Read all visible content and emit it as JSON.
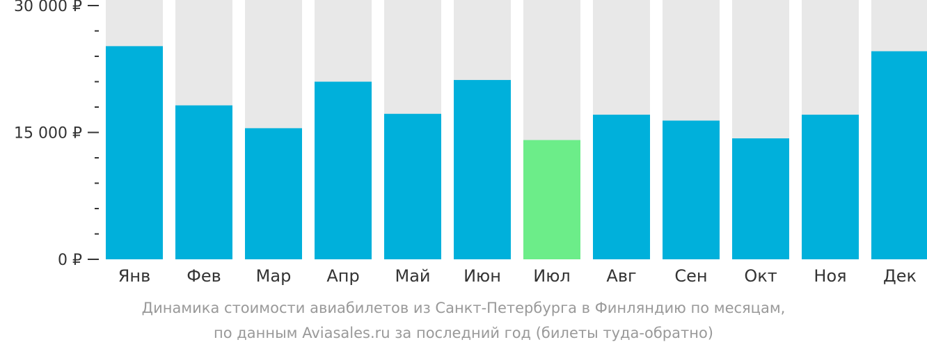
{
  "chart_data": {
    "type": "bar",
    "categories": [
      "Янв",
      "Фев",
      "Мар",
      "Апр",
      "Май",
      "Июн",
      "Июл",
      "Авг",
      "Сен",
      "Окт",
      "Ноя",
      "Дек"
    ],
    "values": [
      25200,
      18200,
      15500,
      21000,
      17200,
      21200,
      14100,
      17100,
      16400,
      14300,
      17100,
      24600
    ],
    "ylim": [
      0,
      30000
    ],
    "y_ticks": [
      {
        "value": 0,
        "label": "0 ₽"
      },
      {
        "value": 15000,
        "label": "15 000 ₽"
      },
      {
        "value": 30000,
        "label": "30 000 ₽"
      }
    ],
    "minor_tick_step": 3000,
    "highlight_index": 6,
    "grid": false,
    "legend": "none",
    "colors": {
      "bar": "#00b0db",
      "highlight": "#6ced89",
      "background_bar": "#e8e8e8",
      "axis": "#333333"
    },
    "caption_lines": [
      "Динамика стоимости авиабилетов из Санкт-Петербурга в Финляндию по месяцам,",
      "по данным Aviasales.ru за последний год (билеты туда-обратно)"
    ]
  }
}
